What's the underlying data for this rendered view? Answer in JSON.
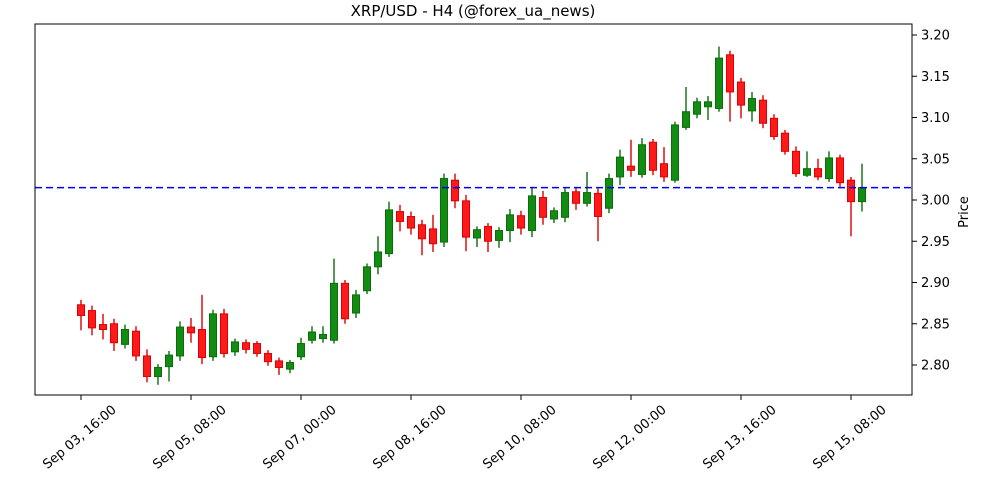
{
  "title": "XRP/USD - H4 (@forex_ua_news)",
  "y_axis": {
    "label": "Price",
    "side": "right",
    "ticks": [
      2.8,
      2.85,
      2.9,
      2.95,
      3.0,
      3.05,
      3.1,
      3.15,
      3.2
    ],
    "range": [
      2.764,
      3.213
    ]
  },
  "x_axis": {
    "tick_labels": [
      "Sep 03, 16:00",
      "Sep 05, 08:00",
      "Sep 07, 00:00",
      "Sep 08, 16:00",
      "Sep 10, 08:00",
      "Sep 12, 00:00",
      "Sep 13, 16:00",
      "Sep 15, 08:00"
    ],
    "tick_indices": [
      0,
      10,
      20,
      30,
      40,
      50,
      60,
      70
    ],
    "label_rotation_deg": 40
  },
  "price_line": {
    "value": 3.015,
    "color": "#0000f0",
    "style": "dashed"
  },
  "colors": {
    "up": "#128c12",
    "up_edge": "#0a6d0a",
    "down": "#fc1a1a",
    "down_edge": "#dd0000",
    "background": "#ffffff",
    "axes_border": "#000000"
  },
  "chart_data": {
    "type": "candlestick",
    "symbol": "XRP/USD",
    "timeframe": "H4",
    "title": "XRP/USD - H4 (@forex_ua_news)",
    "legend_position": "none",
    "grid": false,
    "columns": [
      "time",
      "open",
      "high",
      "low",
      "close"
    ],
    "candles": [
      [
        "Sep 03 16:00",
        2.873,
        2.879,
        2.842,
        2.86
      ],
      [
        "Sep 03 20:00",
        2.866,
        2.872,
        2.836,
        2.845
      ],
      [
        "Sep 04 00:00",
        2.849,
        2.862,
        2.831,
        2.843
      ],
      [
        "Sep 04 04:00",
        2.85,
        2.856,
        2.817,
        2.827
      ],
      [
        "Sep 04 08:00",
        2.825,
        2.849,
        2.82,
        2.843
      ],
      [
        "Sep 04 12:00",
        2.841,
        2.847,
        2.805,
        2.811
      ],
      [
        "Sep 04 16:00",
        2.811,
        2.819,
        2.779,
        2.786
      ],
      [
        "Sep 04 20:00",
        2.786,
        2.801,
        2.776,
        2.797
      ],
      [
        "Sep 05 00:00",
        2.798,
        2.817,
        2.78,
        2.812
      ],
      [
        "Sep 05 04:00",
        2.811,
        2.853,
        2.805,
        2.846
      ],
      [
        "Sep 05 08:00",
        2.846,
        2.857,
        2.827,
        2.839
      ],
      [
        "Sep 05 12:00",
        2.843,
        2.885,
        2.801,
        2.809
      ],
      [
        "Sep 05 16:00",
        2.81,
        2.867,
        2.805,
        2.862
      ],
      [
        "Sep 05 20:00",
        2.862,
        2.868,
        2.809,
        2.814
      ],
      [
        "Sep 06 00:00",
        2.816,
        2.832,
        2.811,
        2.828
      ],
      [
        "Sep 06 04:00",
        2.827,
        2.831,
        2.814,
        2.819
      ],
      [
        "Sep 06 08:00",
        2.826,
        2.829,
        2.81,
        2.814
      ],
      [
        "Sep 06 12:00",
        2.814,
        2.818,
        2.799,
        2.804
      ],
      [
        "Sep 06 16:00",
        2.805,
        2.809,
        2.788,
        2.797
      ],
      [
        "Sep 06 20:00",
        2.795,
        2.806,
        2.79,
        2.803
      ],
      [
        "Sep 07 00:00",
        2.81,
        2.833,
        2.806,
        2.826
      ],
      [
        "Sep 07 04:00",
        2.83,
        2.847,
        2.826,
        2.84
      ],
      [
        "Sep 07 08:00",
        2.832,
        2.847,
        2.827,
        2.837
      ],
      [
        "Sep 07 12:00",
        2.83,
        2.929,
        2.826,
        2.899
      ],
      [
        "Sep 07 16:00",
        2.899,
        2.903,
        2.85,
        2.856
      ],
      [
        "Sep 07 20:00",
        2.863,
        2.891,
        2.857,
        2.885
      ],
      [
        "Sep 08 00:00",
        2.89,
        2.923,
        2.886,
        2.919
      ],
      [
        "Sep 08 04:00",
        2.919,
        2.956,
        2.91,
        2.937
      ],
      [
        "Sep 08 08:00",
        2.935,
        2.998,
        2.931,
        2.988
      ],
      [
        "Sep 08 12:00",
        2.986,
        2.994,
        2.962,
        2.974
      ],
      [
        "Sep 08 16:00",
        2.98,
        2.986,
        2.958,
        2.966
      ],
      [
        "Sep 08 20:00",
        2.97,
        2.976,
        2.933,
        2.953
      ],
      [
        "Sep 09 00:00",
        2.965,
        2.982,
        2.937,
        2.947
      ],
      [
        "Sep 09 04:00",
        2.949,
        3.032,
        2.943,
        3.026
      ],
      [
        "Sep 09 08:00",
        3.024,
        3.032,
        2.99,
        2.999
      ],
      [
        "Sep 09 12:00",
        2.999,
        3.006,
        2.938,
        2.955
      ],
      [
        "Sep 09 16:00",
        2.954,
        2.968,
        2.943,
        2.964
      ],
      [
        "Sep 09 20:00",
        2.968,
        2.972,
        2.937,
        2.95
      ],
      [
        "Sep 10 00:00",
        2.951,
        2.967,
        2.942,
        2.963
      ],
      [
        "Sep 10 04:00",
        2.963,
        2.989,
        2.949,
        2.982
      ],
      [
        "Sep 10 08:00",
        2.981,
        2.987,
        2.958,
        2.966
      ],
      [
        "Sep 10 12:00",
        2.963,
        3.016,
        2.955,
        3.005
      ],
      [
        "Sep 10 16:00",
        3.003,
        3.011,
        2.97,
        2.979
      ],
      [
        "Sep 10 20:00",
        2.977,
        2.991,
        2.972,
        2.987
      ],
      [
        "Sep 11 00:00",
        2.979,
        3.014,
        2.973,
        3.009
      ],
      [
        "Sep 11 04:00",
        3.01,
        3.014,
        2.988,
        2.996
      ],
      [
        "Sep 11 08:00",
        2.996,
        3.034,
        2.992,
        3.009
      ],
      [
        "Sep 11 12:00",
        3.008,
        3.014,
        2.95,
        2.98
      ],
      [
        "Sep 11 16:00",
        2.99,
        3.032,
        2.984,
        3.026
      ],
      [
        "Sep 11 20:00",
        3.028,
        3.061,
        3.018,
        3.052
      ],
      [
        "Sep 12 00:00",
        3.041,
        3.073,
        3.028,
        3.036
      ],
      [
        "Sep 12 04:00",
        3.031,
        3.075,
        3.027,
        3.067
      ],
      [
        "Sep 12 08:00",
        3.07,
        3.074,
        3.03,
        3.036
      ],
      [
        "Sep 12 12:00",
        3.044,
        3.064,
        3.022,
        3.028
      ],
      [
        "Sep 12 16:00",
        3.024,
        3.095,
        3.021,
        3.091
      ],
      [
        "Sep 12 20:00",
        3.088,
        3.137,
        3.085,
        3.107
      ],
      [
        "Sep 13 00:00",
        3.104,
        3.124,
        3.099,
        3.119
      ],
      [
        "Sep 13 04:00",
        3.113,
        3.126,
        3.097,
        3.119
      ],
      [
        "Sep 13 08:00",
        3.111,
        3.186,
        3.107,
        3.172
      ],
      [
        "Sep 13 12:00",
        3.176,
        3.181,
        3.095,
        3.131
      ],
      [
        "Sep 13 16:00",
        3.143,
        3.148,
        3.099,
        3.115
      ],
      [
        "Sep 13 20:00",
        3.108,
        3.131,
        3.095,
        3.123
      ],
      [
        "Sep 14 00:00",
        3.121,
        3.127,
        3.087,
        3.093
      ],
      [
        "Sep 14 04:00",
        3.099,
        3.104,
        3.073,
        3.077
      ],
      [
        "Sep 14 08:00",
        3.081,
        3.085,
        3.055,
        3.059
      ],
      [
        "Sep 14 12:00",
        3.059,
        3.065,
        3.028,
        3.032
      ],
      [
        "Sep 14 16:00",
        3.03,
        3.059,
        3.028,
        3.038
      ],
      [
        "Sep 14 20:00",
        3.038,
        3.05,
        3.024,
        3.028
      ],
      [
        "Sep 15 00:00",
        3.026,
        3.059,
        3.022,
        3.051
      ],
      [
        "Sep 15 04:00",
        3.051,
        3.055,
        3.016,
        3.021
      ],
      [
        "Sep 15 08:00",
        3.024,
        3.028,
        2.956,
        2.998
      ],
      [
        "Sep 15 12:00",
        2.998,
        3.044,
        2.986,
        3.015
      ]
    ]
  }
}
